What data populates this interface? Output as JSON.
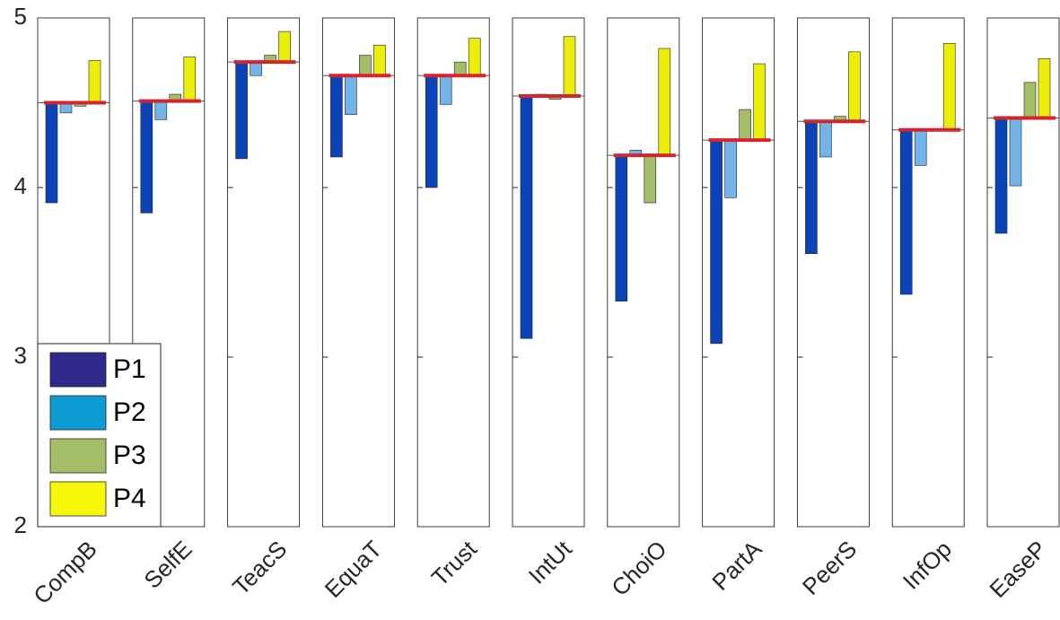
{
  "chart_data": {
    "type": "bar",
    "ylim": [
      2,
      5
    ],
    "yticks": [
      2,
      3,
      4,
      5
    ],
    "legend_position": "bottom-left",
    "categories": [
      "CompB",
      "SelfE",
      "TeacS",
      "EquaT",
      "Trust",
      "IntUt",
      "ChoiO",
      "PartA",
      "PeerS",
      "InfOp",
      "EaseP"
    ],
    "mean": [
      4.5,
      4.51,
      4.74,
      4.66,
      4.66,
      4.54,
      4.19,
      4.28,
      4.39,
      4.34,
      4.41
    ],
    "series": [
      {
        "name": "P1",
        "legend_color": "#30288a",
        "bar_color": "#0a44b8",
        "values": [
          3.91,
          3.85,
          4.17,
          4.18,
          4.0,
          3.11,
          3.33,
          3.08,
          3.61,
          3.37,
          3.73
        ]
      },
      {
        "name": "P2",
        "legend_color": "#0e9bd4",
        "bar_color": "#72b3e8",
        "values": [
          4.44,
          4.4,
          4.66,
          4.43,
          4.49,
          4.55,
          4.22,
          3.94,
          4.18,
          4.13,
          4.01
        ]
      },
      {
        "name": "P3",
        "legend_color": "#a3bd68",
        "bar_color": "#a3bd68",
        "values": [
          4.48,
          4.55,
          4.78,
          4.78,
          4.74,
          4.52,
          3.91,
          4.46,
          4.42,
          4.34,
          4.62
        ]
      },
      {
        "name": "P4",
        "legend_color": "#f8f80a",
        "bar_color": "#eded0a",
        "values": [
          4.75,
          4.77,
          4.92,
          4.84,
          4.88,
          4.89,
          4.82,
          4.73,
          4.8,
          4.85,
          4.76
        ]
      }
    ],
    "mean_line_color": "#d6242e"
  }
}
